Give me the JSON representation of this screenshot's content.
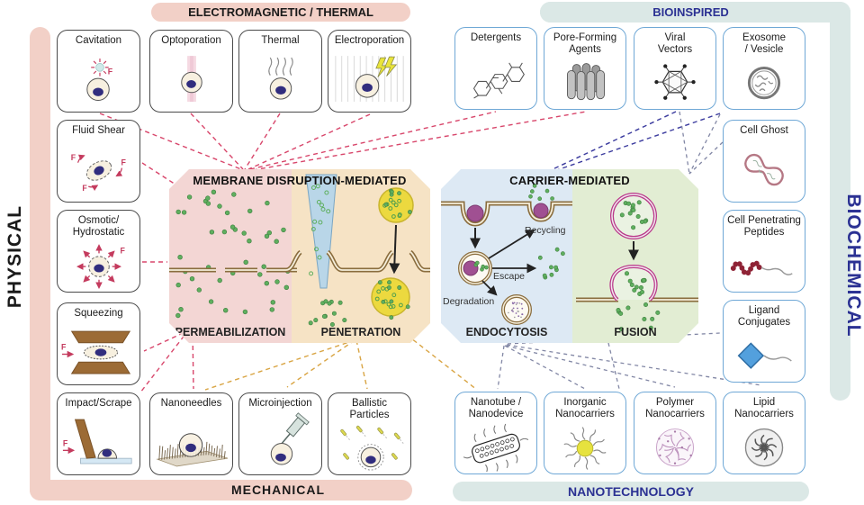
{
  "regions": {
    "physical": {
      "label": "PHYSICAL"
    },
    "biochemical": {
      "label": "BIOCHEMICAL"
    },
    "electromagnetic": {
      "label": "ELECTROMAGNETIC / THERMAL"
    },
    "bioinspired": {
      "label": "BIOINSPIRED"
    },
    "mechanical": {
      "label": "MECHANICAL"
    },
    "nanotechnology": {
      "label": "NANOTECHNOLOGY"
    }
  },
  "panels": {
    "membrane": {
      "title": "MEMBRANE DISRUPTION-MEDIATED",
      "left_label": "PERMEABILIZATION",
      "right_label": "PENETRATION"
    },
    "carrier": {
      "title": "CARRIER-MEDIATED",
      "left_label": "ENDOCYTOSIS",
      "right_label": "FUSION",
      "annotations": {
        "recycling": "Recycling",
        "escape": "Escape",
        "degradation": "Degradation"
      }
    }
  },
  "methods": {
    "cavitation": "Cavitation",
    "optoporation": "Optoporation",
    "thermal": "Thermal",
    "electroporation": "Electroporation",
    "fluid_shear": "Fluid Shear",
    "osmotic": "Osmotic/\nHydrostatic",
    "squeezing": "Squeezing",
    "impact_scrape": "Impact/Scrape",
    "nanoneedles": "Nanoneedles",
    "microinjection": "Microinjection",
    "ballistic": "Ballistic\nParticles",
    "detergents": "Detergents",
    "pore_forming": "Pore-Forming\nAgents",
    "viral_vectors": "Viral\nVectors",
    "exosome": "Exosome\n/ Vesicle",
    "cell_ghost": "Cell Ghost",
    "cpp": "Cell Penetrating\nPeptides",
    "ligand": "Ligand\nConjugates",
    "nanotube": "Nanotube /\nNanodevice",
    "inorganic": "Inorganic\nNanocarriers",
    "polymer": "Polymer\nNanocarriers",
    "lipid": "Lipid\nNanocarriers",
    "force_label": "F"
  },
  "colors": {
    "pink_frame": "#f2d0c7",
    "teal_frame": "#dbe8e6",
    "navy_text": "#2b3193",
    "black_text": "#1a1a1a",
    "red_dash": "#d8466b",
    "orange_dash": "#d9a544",
    "navy_dash": "#3b3b9e",
    "slate_dash": "#8287a5",
    "green_dot": "#5faf5f",
    "membrane_brown": "#8a6d3e",
    "magenta_vesicle": "#b9398a",
    "purple_particle": "#a05092",
    "yellow_particle": "#ecd93f",
    "needle_blue": "#b9d6e8",
    "perm_bg": "#f3d6d4",
    "pen_bg": "#f6e3c5",
    "endo_bg": "#dde9f4",
    "fusion_bg": "#e2edd3"
  }
}
